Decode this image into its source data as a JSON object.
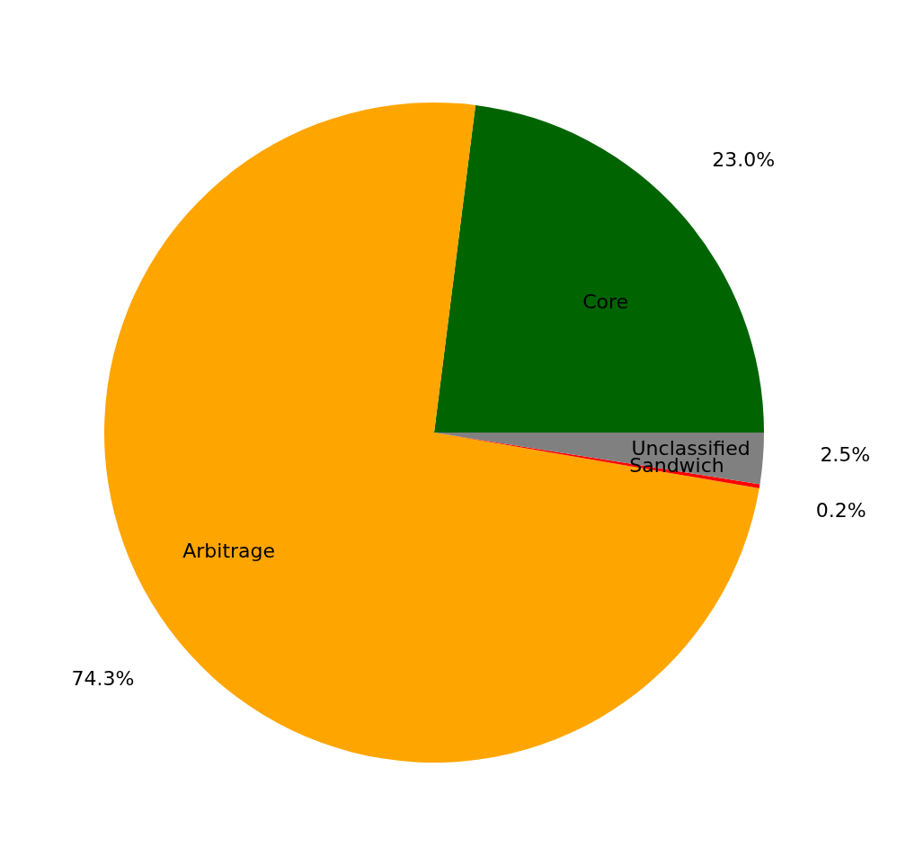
{
  "chart_data": {
    "type": "pie",
    "categories": [
      "Core",
      "Arbitrage",
      "Sandwich",
      "Unclassified"
    ],
    "values": [
      23.0,
      74.3,
      0.2,
      2.5
    ],
    "colors": [
      "#006400",
      "#ffa500",
      "#ff0000",
      "#808080"
    ],
    "value_labels": [
      "23.0%",
      "74.3%",
      "0.2%",
      "2.5%"
    ]
  }
}
